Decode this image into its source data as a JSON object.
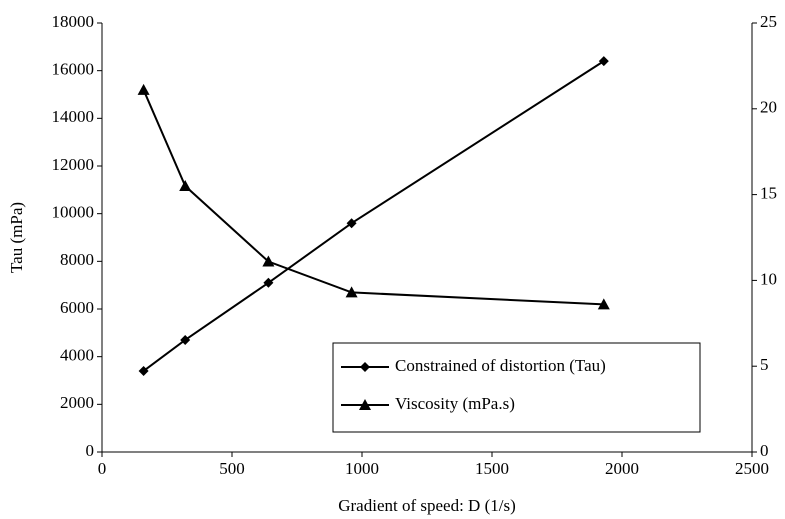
{
  "chart_data": {
    "type": "line",
    "x_label": "Gradient of speed: D (1/s)",
    "y_label": "Tau (mPa)",
    "x": [
      160,
      320,
      640,
      960,
      1930
    ],
    "series": [
      {
        "name": "Constrained of distortion (Tau)",
        "color": "#000000",
        "marker": "diamond",
        "values": [
          3400,
          4700,
          7100,
          9600,
          16400
        ]
      },
      {
        "name": "Viscosity (mPa.s)",
        "color": "#000000",
        "marker": "triangle",
        "axis": "y2",
        "values": [
          21.1,
          15.5,
          11.1,
          9.3,
          8.6
        ]
      }
    ],
    "xlim": [
      0,
      2500
    ],
    "xticks": [
      0,
      500,
      1000,
      1500,
      2000,
      2500
    ],
    "ylim": [
      0,
      18000
    ],
    "yticks": [
      0,
      2000,
      4000,
      6000,
      8000,
      10000,
      12000,
      14000,
      16000,
      18000
    ],
    "y2lim": [
      0,
      25
    ],
    "y2ticks": [
      0,
      5,
      10,
      15,
      20,
      25
    ],
    "legend": "lower right"
  }
}
